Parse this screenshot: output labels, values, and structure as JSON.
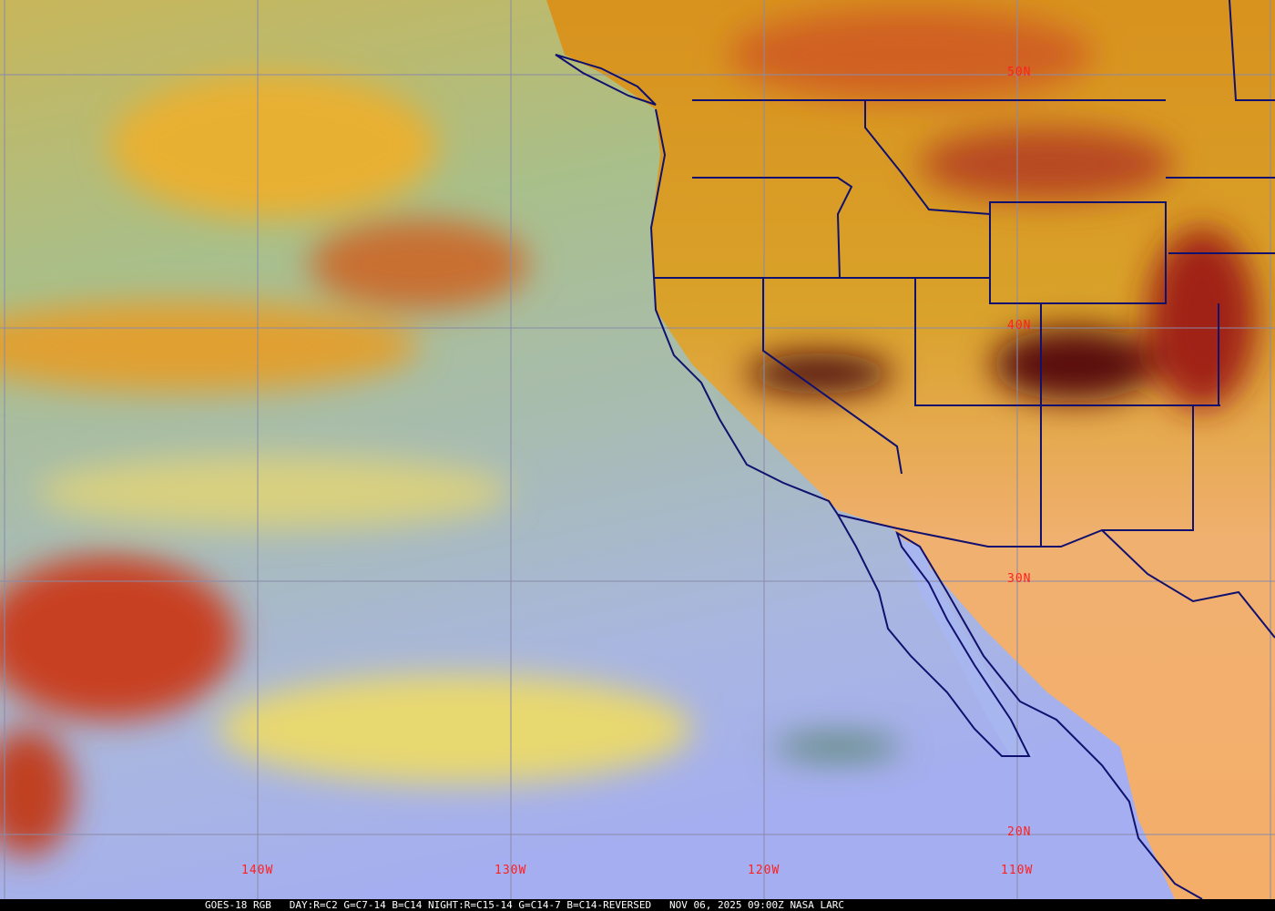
{
  "caption": {
    "satellite": "GOES-18 RGB",
    "recipe": "DAY:R=C2 G=C7-14 B=C14 NIGHT:R=C15-14 G=C14-7 B=C14-REVERSED",
    "datetime": "NOV 06, 2025 09:00Z",
    "source": "NASA LARC"
  },
  "grid": {
    "lat_labels": [
      "50N",
      "40N",
      "30N",
      "20N"
    ],
    "lon_labels": [
      "140W",
      "130W",
      "120W",
      "110W"
    ],
    "label_color": "#ff2020",
    "grid_color": "#8a8aa8",
    "border_color": "#10106e"
  }
}
